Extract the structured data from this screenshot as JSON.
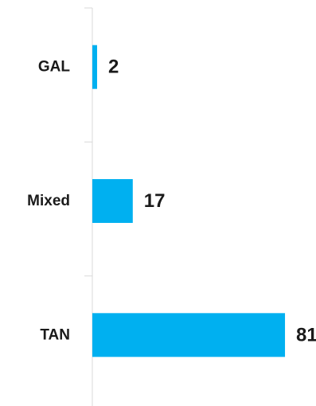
{
  "chart_data": {
    "type": "bar",
    "orientation": "horizontal",
    "categories": [
      "GAL",
      "Mixed",
      "TAN"
    ],
    "values": [
      2,
      17,
      81
    ],
    "title": "",
    "xlabel": "",
    "ylabel": "",
    "xlim": [
      0,
      85
    ],
    "grid": false,
    "legend": "none",
    "bar_color": "#00b0f0",
    "axis_color": "#d9d9d9",
    "data_labels": true
  }
}
